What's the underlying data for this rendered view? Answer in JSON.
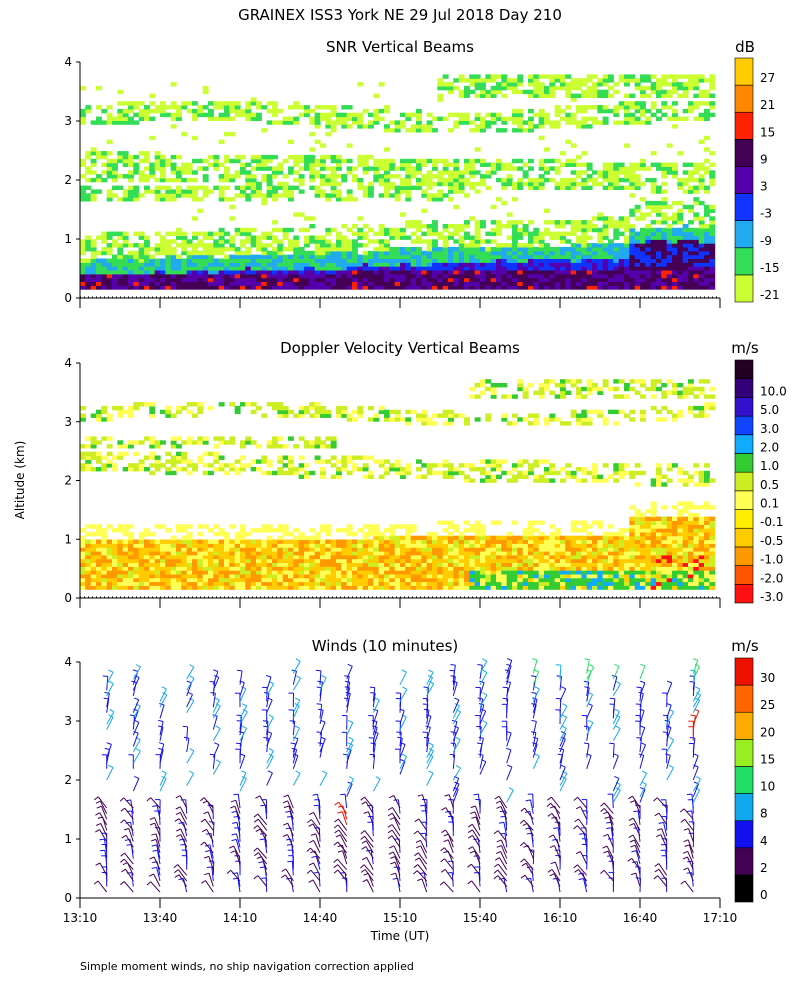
{
  "title": "GRAINEX ISS3 York NE  29 Jul 2018 Day 210",
  "ylabel": "Altitude (km)",
  "xlabel": "Time (UT)",
  "footnote": "Simple moment winds, no ship navigation correction applied",
  "x_ticks": [
    "13:10",
    "13:40",
    "14:10",
    "14:40",
    "15:10",
    "15:40",
    "16:10",
    "16:40",
    "17:10"
  ],
  "y_ticks": [
    "0",
    "1",
    "2",
    "3",
    "4"
  ],
  "colors": {
    "snr": [
      "#ccff33",
      "#33dd55",
      "#22aaee",
      "#1133ff",
      "#5500aa",
      "#440055",
      "#ff2200",
      "#ff8800",
      "#ffcc00"
    ],
    "vel": [
      "#ff1111",
      "#ff5500",
      "#ff9900",
      "#ffcc00",
      "#ffee00",
      "#ffff55",
      "#ccee22",
      "#33cc33",
      "#11aaff",
      "#1144ff",
      "#3311cc",
      "#330077",
      "#220022"
    ],
    "wind": [
      "#000000",
      "#440055",
      "#1111ee",
      "#11aaee",
      "#22dd66",
      "#99ee22",
      "#ffaa00",
      "#ff6600",
      "#ee1100"
    ]
  },
  "chart_data": [
    {
      "type": "heatmap",
      "title": "SNR Vertical Beams",
      "units": "dB",
      "x_range": [
        "13:10",
        "17:10"
      ],
      "y_range_km": [
        0,
        4
      ],
      "colorbar_labels": [
        "-21",
        "-15",
        "-9",
        "-3",
        "3",
        "9",
        "15",
        "21",
        "27"
      ],
      "description_levels_dB": {
        "below_1km": [
          3,
          15
        ],
        "1_to_1.5km": [
          -15,
          -3
        ],
        "2_to_3.5km": [
          -21,
          -15
        ]
      }
    },
    {
      "type": "heatmap",
      "title": "Doppler Velocity Vertical Beams",
      "units": "m/s",
      "x_range": [
        "13:10",
        "17:10"
      ],
      "y_range_km": [
        0,
        4
      ],
      "colorbar_labels": [
        "-3.0",
        "-2.0",
        "-1.0",
        "-0.5",
        "-0.1",
        "0.1",
        "0.5",
        "1.0",
        "2.0",
        "3.0",
        "5.0",
        "10.0"
      ]
    },
    {
      "type": "scatter",
      "title": "Winds (10 minutes)",
      "units": "m/s",
      "x_range": [
        "13:10",
        "17:10"
      ],
      "y_range_km": [
        0,
        4
      ],
      "colorbar_labels": [
        "0",
        "2",
        "4",
        "8",
        "10",
        "15",
        "20",
        "25",
        "30"
      ],
      "profile_times": [
        "13:20",
        "13:30",
        "13:40",
        "13:50",
        "14:00",
        "14:10",
        "14:20",
        "14:30",
        "14:40",
        "14:50",
        "15:00",
        "15:10",
        "15:20",
        "15:30",
        "15:40",
        "15:50",
        "16:00",
        "16:10",
        "16:20",
        "16:30",
        "16:40",
        "16:50",
        "17:00"
      ],
      "typical_speed_ms": {
        "0_to_1.5km": [
          2,
          8
        ],
        "2_to_3.5km": [
          4,
          10
        ],
        "above_3.5km_late": [
          10,
          20
        ]
      }
    }
  ]
}
